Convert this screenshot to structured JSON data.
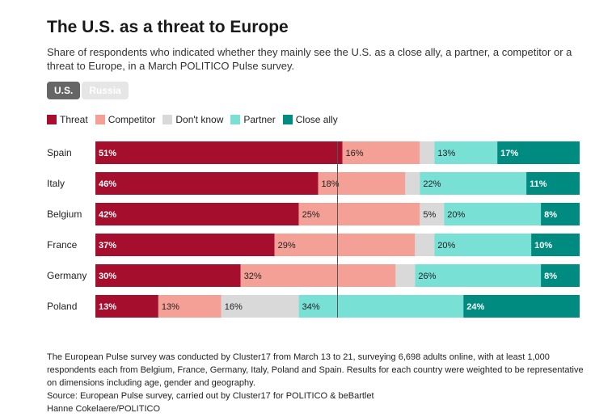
{
  "header": {
    "title": "The U.S. as a threat to Europe",
    "subtitle": "Share of respondents who indicated whether they mainly see the U.S. as a close ally, a partner, a competitor or a threat to Europe, in a March POLITICO Pulse survey."
  },
  "tabs": [
    {
      "label": "U.S.",
      "active": true
    },
    {
      "label": "Russia",
      "active": false
    }
  ],
  "colors": {
    "threat": "#a50e2d",
    "competitor": "#f5a097",
    "dont_know": "#d9d9d9",
    "partner": "#79e0d6",
    "close_ally": "#008b80"
  },
  "chart_data": {
    "type": "bar",
    "orientation": "horizontal-stacked",
    "title": "The U.S. as a threat to Europe",
    "categories": [
      "Spain",
      "Italy",
      "Belgium",
      "France",
      "Germany",
      "Poland"
    ],
    "series": [
      {
        "name": "Threat",
        "key": "threat",
        "values": [
          51,
          46,
          42,
          37,
          30,
          13
        ],
        "labels": [
          "51%",
          "46%",
          "42%",
          "37%",
          "30%",
          "13%"
        ]
      },
      {
        "name": "Competitor",
        "key": "competitor",
        "values": [
          16,
          18,
          25,
          29,
          32,
          13
        ],
        "labels": [
          "16%",
          "18%",
          "25%",
          "29%",
          "32%",
          "13%"
        ]
      },
      {
        "name": "Don't know",
        "key": "dont_know",
        "values": [
          3,
          3,
          5,
          4,
          4,
          16
        ],
        "labels": [
          "",
          "",
          "5%",
          "",
          "",
          "16%"
        ]
      },
      {
        "name": "Partner",
        "key": "partner",
        "values": [
          13,
          22,
          20,
          20,
          26,
          34
        ],
        "labels": [
          "13%",
          "22%",
          "20%",
          "20%",
          "26%",
          "34%"
        ]
      },
      {
        "name": "Close ally",
        "key": "close_ally",
        "values": [
          17,
          11,
          8,
          10,
          8,
          24
        ],
        "labels": [
          "17%",
          "11%",
          "8%",
          "10%",
          "8%",
          "24%"
        ]
      }
    ],
    "xlim": [
      0,
      100
    ],
    "reference_line": 50
  },
  "footer": {
    "note": "The European Pulse survey was conducted by Cluster17 from March 13 to 21, surveying 6,698 adults online, with at least 1,000 respondents each from Belgium, France, Germany, Italy, Poland and Spain. Results for each country were weighted to be representative on dimensions including age, gender and geography.",
    "source": "Source: European Pulse survey, carried out by Cluster17 for POLITICO & beBartlet",
    "credit": "Hanne Cokelaere/POLITICO"
  }
}
